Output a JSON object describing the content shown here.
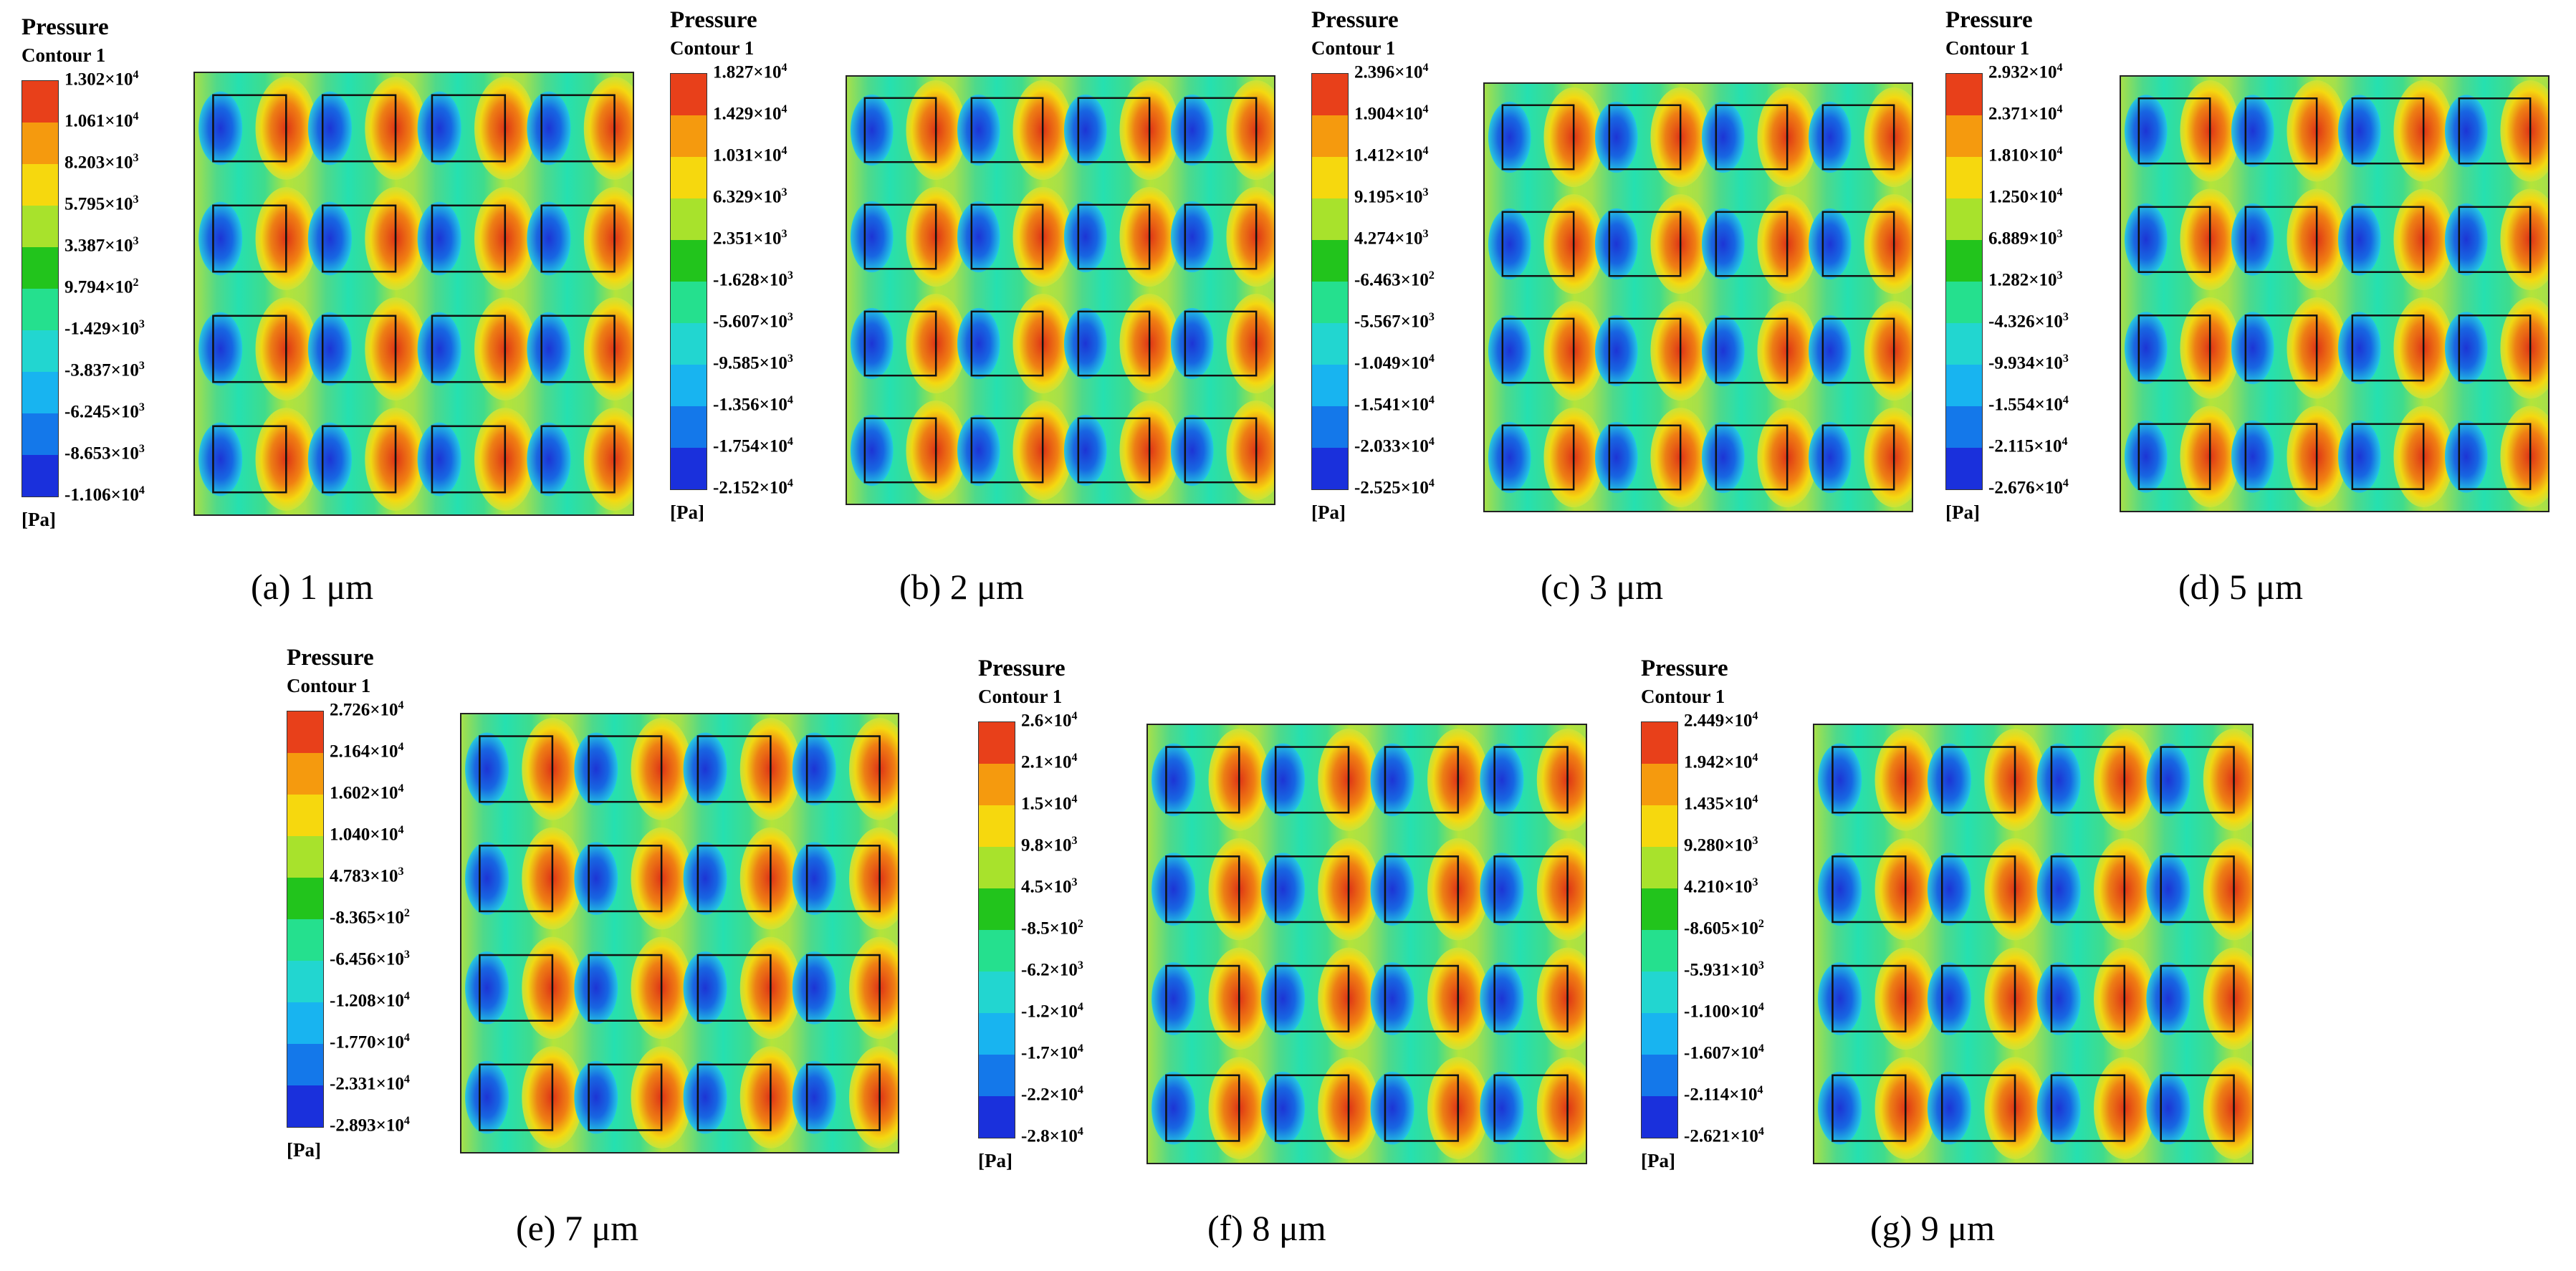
{
  "legend_title_line1": "Pressure",
  "legend_title_line2": "Contour 1",
  "unit": "[Pa]",
  "legend_colors": [
    "#e8401a",
    "#f59a0e",
    "#f6d80e",
    "#a8e22c",
    "#22c41c",
    "#25e08e",
    "#22d6d0",
    "#18b4f0",
    "#1478ea",
    "#1a30dc"
  ],
  "panels": [
    {
      "caption": "(a) 1 μm",
      "ticks": [
        [
          "1.302",
          "4"
        ],
        [
          "1.061",
          "4"
        ],
        [
          "8.203",
          "3"
        ],
        [
          "5.795",
          "3"
        ],
        [
          "3.387",
          "3"
        ],
        [
          "9.794",
          "2"
        ],
        [
          "-1.429",
          "3"
        ],
        [
          "-3.837",
          "3"
        ],
        [
          "-6.245",
          "3"
        ],
        [
          "-8.653",
          "3"
        ],
        [
          "-1.106",
          "4"
        ]
      ]
    },
    {
      "caption": "(b) 2 μm",
      "ticks": [
        [
          "1.827",
          "4"
        ],
        [
          "1.429",
          "4"
        ],
        [
          "1.031",
          "4"
        ],
        [
          "6.329",
          "3"
        ],
        [
          "2.351",
          "3"
        ],
        [
          "-1.628",
          "3"
        ],
        [
          "-5.607",
          "3"
        ],
        [
          "-9.585",
          "3"
        ],
        [
          "-1.356",
          "4"
        ],
        [
          "-1.754",
          "4"
        ],
        [
          "-2.152",
          "4"
        ]
      ]
    },
    {
      "caption": "(c) 3 μm",
      "ticks": [
        [
          "2.396",
          "4"
        ],
        [
          "1.904",
          "4"
        ],
        [
          "1.412",
          "4"
        ],
        [
          "9.195",
          "3"
        ],
        [
          "4.274",
          "3"
        ],
        [
          "-6.463",
          "2"
        ],
        [
          "-5.567",
          "3"
        ],
        [
          "-1.049",
          "4"
        ],
        [
          "-1.541",
          "4"
        ],
        [
          "-2.033",
          "4"
        ],
        [
          "-2.525",
          "4"
        ]
      ]
    },
    {
      "caption": "(d) 5 μm",
      "ticks": [
        [
          "2.932",
          "4"
        ],
        [
          "2.371",
          "4"
        ],
        [
          "1.810",
          "4"
        ],
        [
          "1.250",
          "4"
        ],
        [
          "6.889",
          "3"
        ],
        [
          "1.282",
          "3"
        ],
        [
          "-4.326",
          "3"
        ],
        [
          "-9.934",
          "3"
        ],
        [
          "-1.554",
          "4"
        ],
        [
          "-2.115",
          "4"
        ],
        [
          "-2.676",
          "4"
        ]
      ]
    },
    {
      "caption": "(e) 7 μm",
      "ticks": [
        [
          "2.726",
          "4"
        ],
        [
          "2.164",
          "4"
        ],
        [
          "1.602",
          "4"
        ],
        [
          "1.040",
          "4"
        ],
        [
          "4.783",
          "3"
        ],
        [
          "-8.365",
          "2"
        ],
        [
          "-6.456",
          "3"
        ],
        [
          "-1.208",
          "4"
        ],
        [
          "-1.770",
          "4"
        ],
        [
          "-2.331",
          "4"
        ],
        [
          "-2.893",
          "4"
        ]
      ]
    },
    {
      "caption": "(f) 8 μm",
      "ticks": [
        [
          "2.6",
          "4"
        ],
        [
          "2.1",
          "4"
        ],
        [
          "1.5",
          "4"
        ],
        [
          "9.8",
          "3"
        ],
        [
          "4.5",
          "3"
        ],
        [
          "-8.5",
          "2"
        ],
        [
          "-6.2",
          "3"
        ],
        [
          "-1.2",
          "4"
        ],
        [
          "-1.7",
          "4"
        ],
        [
          "-2.2",
          "4"
        ],
        [
          "-2.8",
          "4"
        ]
      ]
    },
    {
      "caption": "(g) 9 μm",
      "ticks": [
        [
          "2.449",
          "4"
        ],
        [
          "1.942",
          "4"
        ],
        [
          "1.435",
          "4"
        ],
        [
          "9.280",
          "3"
        ],
        [
          "4.210",
          "3"
        ],
        [
          "-8.605",
          "2"
        ],
        [
          "-5.931",
          "3"
        ],
        [
          "-1.100",
          "4"
        ],
        [
          "-1.607",
          "4"
        ],
        [
          "-2.114",
          "4"
        ],
        [
          "-2.621",
          "4"
        ]
      ]
    }
  ]
}
